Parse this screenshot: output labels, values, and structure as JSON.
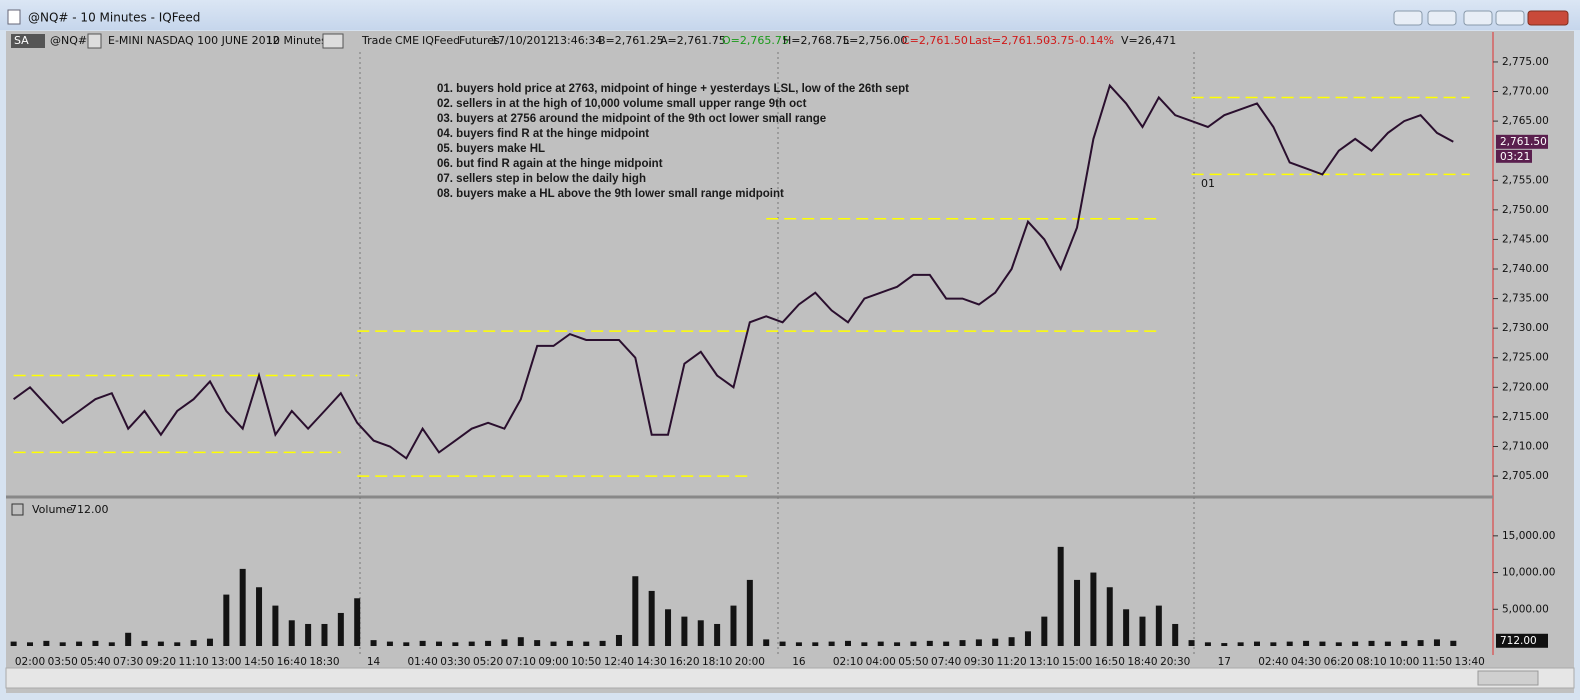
{
  "window": {
    "title": "@NQ# - 10 Minutes - IQFeed"
  },
  "toolbar": {
    "symbol_box": "SA",
    "symbol": "@NQ#",
    "contract": "E-MINI NASDAQ 100 JUNE 2012",
    "interval": "10 Minutes",
    "info": [
      "Trade",
      "CME",
      "IQFeed",
      "Futures",
      "17/10/2012",
      "13:46:34"
    ],
    "bid": "B=2,761.25",
    "ask": "A=2,761.75",
    "open": "O=2,765.75",
    "high": "H=2,768.75",
    "low": "L=2,756.00",
    "close": "C=2,761.50",
    "last": "Last=2,761.50",
    "change": "-3.75",
    "change_pct": "-0.14%",
    "volume": "V=26,471"
  },
  "notes": [
    "01. buyers hold price at 2763, midpoint of hinge + yesterdays LSL, low of the 26th sept",
    "02. sellers in at the high of 10,000 volume small upper range 9th oct",
    "03. buyers at 2756 around the midpoint of the 9th oct lower small range",
    "04. buyers find R at the hinge midpoint",
    "05. buyers make HL",
    "06. but find R again at the hinge midpoint",
    "07. sellers step in below the daily high",
    "08. buyers make a HL above the 9th lower small range midpoint"
  ],
  "marker": "01",
  "chart_data": [
    {
      "type": "line",
      "color": "#2a0f2e",
      "values": [
        2718,
        2720,
        2717,
        2714,
        2716,
        2718,
        2719,
        2713,
        2716,
        2712,
        2716,
        2718,
        2721,
        2716,
        2713,
        2722,
        2712,
        2716,
        2713,
        2716,
        2719,
        2714,
        2711,
        2710,
        2708,
        2713,
        2709,
        2711,
        2713,
        2714,
        2713,
        2718,
        2727,
        2727,
        2729,
        2728,
        2728,
        2728,
        2725,
        2712,
        2712,
        2724,
        2726,
        2722,
        2720,
        2731,
        2732,
        2731,
        2734,
        2736,
        2733,
        2731,
        2735,
        2736,
        2737,
        2739,
        2739,
        2735,
        2735,
        2734,
        2736,
        2740,
        2748,
        2745,
        2740,
        2747,
        2762,
        2771,
        2768,
        2764,
        2769,
        2766,
        2765,
        2764,
        2766,
        2767,
        2768,
        2764,
        2758,
        2757,
        2756,
        2760,
        2762,
        2760,
        2763,
        2765,
        2766,
        2763,
        2761.5,
        null
      ],
      "levels": [
        2722,
        2709,
        2729.5,
        2705,
        2748.5,
        2729.5,
        2769,
        2756
      ],
      "level_color": "#ffff00",
      "ylim": [
        2701.8,
        2780.4
      ],
      "yticks": [
        {
          "value": 2705,
          "label": "2,705.00"
        },
        {
          "value": 2710,
          "label": "2,710.00"
        },
        {
          "value": 2715,
          "label": "2,715.00"
        },
        {
          "value": 2720,
          "label": "2,720.00"
        },
        {
          "value": 2725,
          "label": "2,725.00"
        },
        {
          "value": 2730,
          "label": "2,730.00"
        },
        {
          "value": 2735,
          "label": "2,735.00"
        },
        {
          "value": 2740,
          "label": "2,740.00"
        },
        {
          "value": 2745,
          "label": "2,745.00"
        },
        {
          "value": 2750,
          "label": "2,750.00"
        },
        {
          "value": 2755,
          "label": "2,755.00"
        },
        {
          "value": 2765,
          "label": "2,765.00"
        },
        {
          "value": 2770,
          "label": "2,770.00"
        },
        {
          "value": 2775,
          "label": "2,775.00"
        }
      ],
      "last_box": {
        "value": 2761.5,
        "label": "2,761.50"
      },
      "timer": "03:21"
    },
    {
      "type": "bar",
      "title": "Volume",
      "current": "712.00",
      "color": "#141414",
      "categories": [
        null,
        "02:00",
        null,
        "03:50",
        null,
        "05:40",
        null,
        "07:30",
        null,
        "09:20",
        null,
        "11:10",
        null,
        "13:00",
        null,
        "14:50",
        null,
        "16:40",
        null,
        "18:30",
        null,
        null,
        "14",
        null,
        null,
        "01:40",
        null,
        "03:30",
        null,
        "05:20",
        null,
        "07:10",
        null,
        "09:00",
        null,
        "10:50",
        null,
        "12:40",
        null,
        "14:30",
        null,
        "16:20",
        null,
        "18:10",
        null,
        "20:00",
        null,
        null,
        "16",
        null,
        null,
        "02:10",
        null,
        "04:00",
        null,
        "05:50",
        null,
        "07:40",
        null,
        "09:30",
        null,
        "11:20",
        null,
        "13:10",
        null,
        "15:00",
        null,
        "16:50",
        null,
        "18:40",
        null,
        "20:30",
        null,
        null,
        "17",
        null,
        null,
        "02:40",
        null,
        "04:30",
        null,
        "06:20",
        null,
        "08:10",
        null,
        "10:00",
        null,
        "11:50",
        null,
        "13:40"
      ],
      "values": [
        600,
        500,
        700,
        500,
        600,
        700,
        500,
        1800,
        700,
        600,
        500,
        800,
        1000,
        7000,
        10500,
        8000,
        5500,
        3500,
        3000,
        3000,
        4500,
        6500,
        800,
        600,
        500,
        700,
        600,
        500,
        600,
        700,
        900,
        1200,
        800,
        600,
        700,
        600,
        700,
        1500,
        9500,
        7500,
        5000,
        4000,
        3500,
        3000,
        5500,
        9000,
        900,
        600,
        500,
        500,
        600,
        700,
        500,
        600,
        500,
        600,
        700,
        600,
        800,
        900,
        1000,
        1200,
        2000,
        4000,
        13500,
        9000,
        10000,
        8000,
        5000,
        4000,
        5500,
        3000,
        800,
        500,
        400,
        500,
        600,
        500,
        600,
        700,
        600,
        500,
        600,
        700,
        600,
        700,
        800,
        900,
        712,
        null
      ],
      "ylim": [
        0,
        19200
      ],
      "yticks": [
        {
          "value": 5000,
          "label": "5,000.00"
        },
        {
          "value": 10000,
          "label": "10,000.00"
        },
        {
          "value": 15000,
          "label": "15,000.00"
        }
      ],
      "last_box": {
        "value": 712,
        "label": "712.00"
      }
    }
  ]
}
